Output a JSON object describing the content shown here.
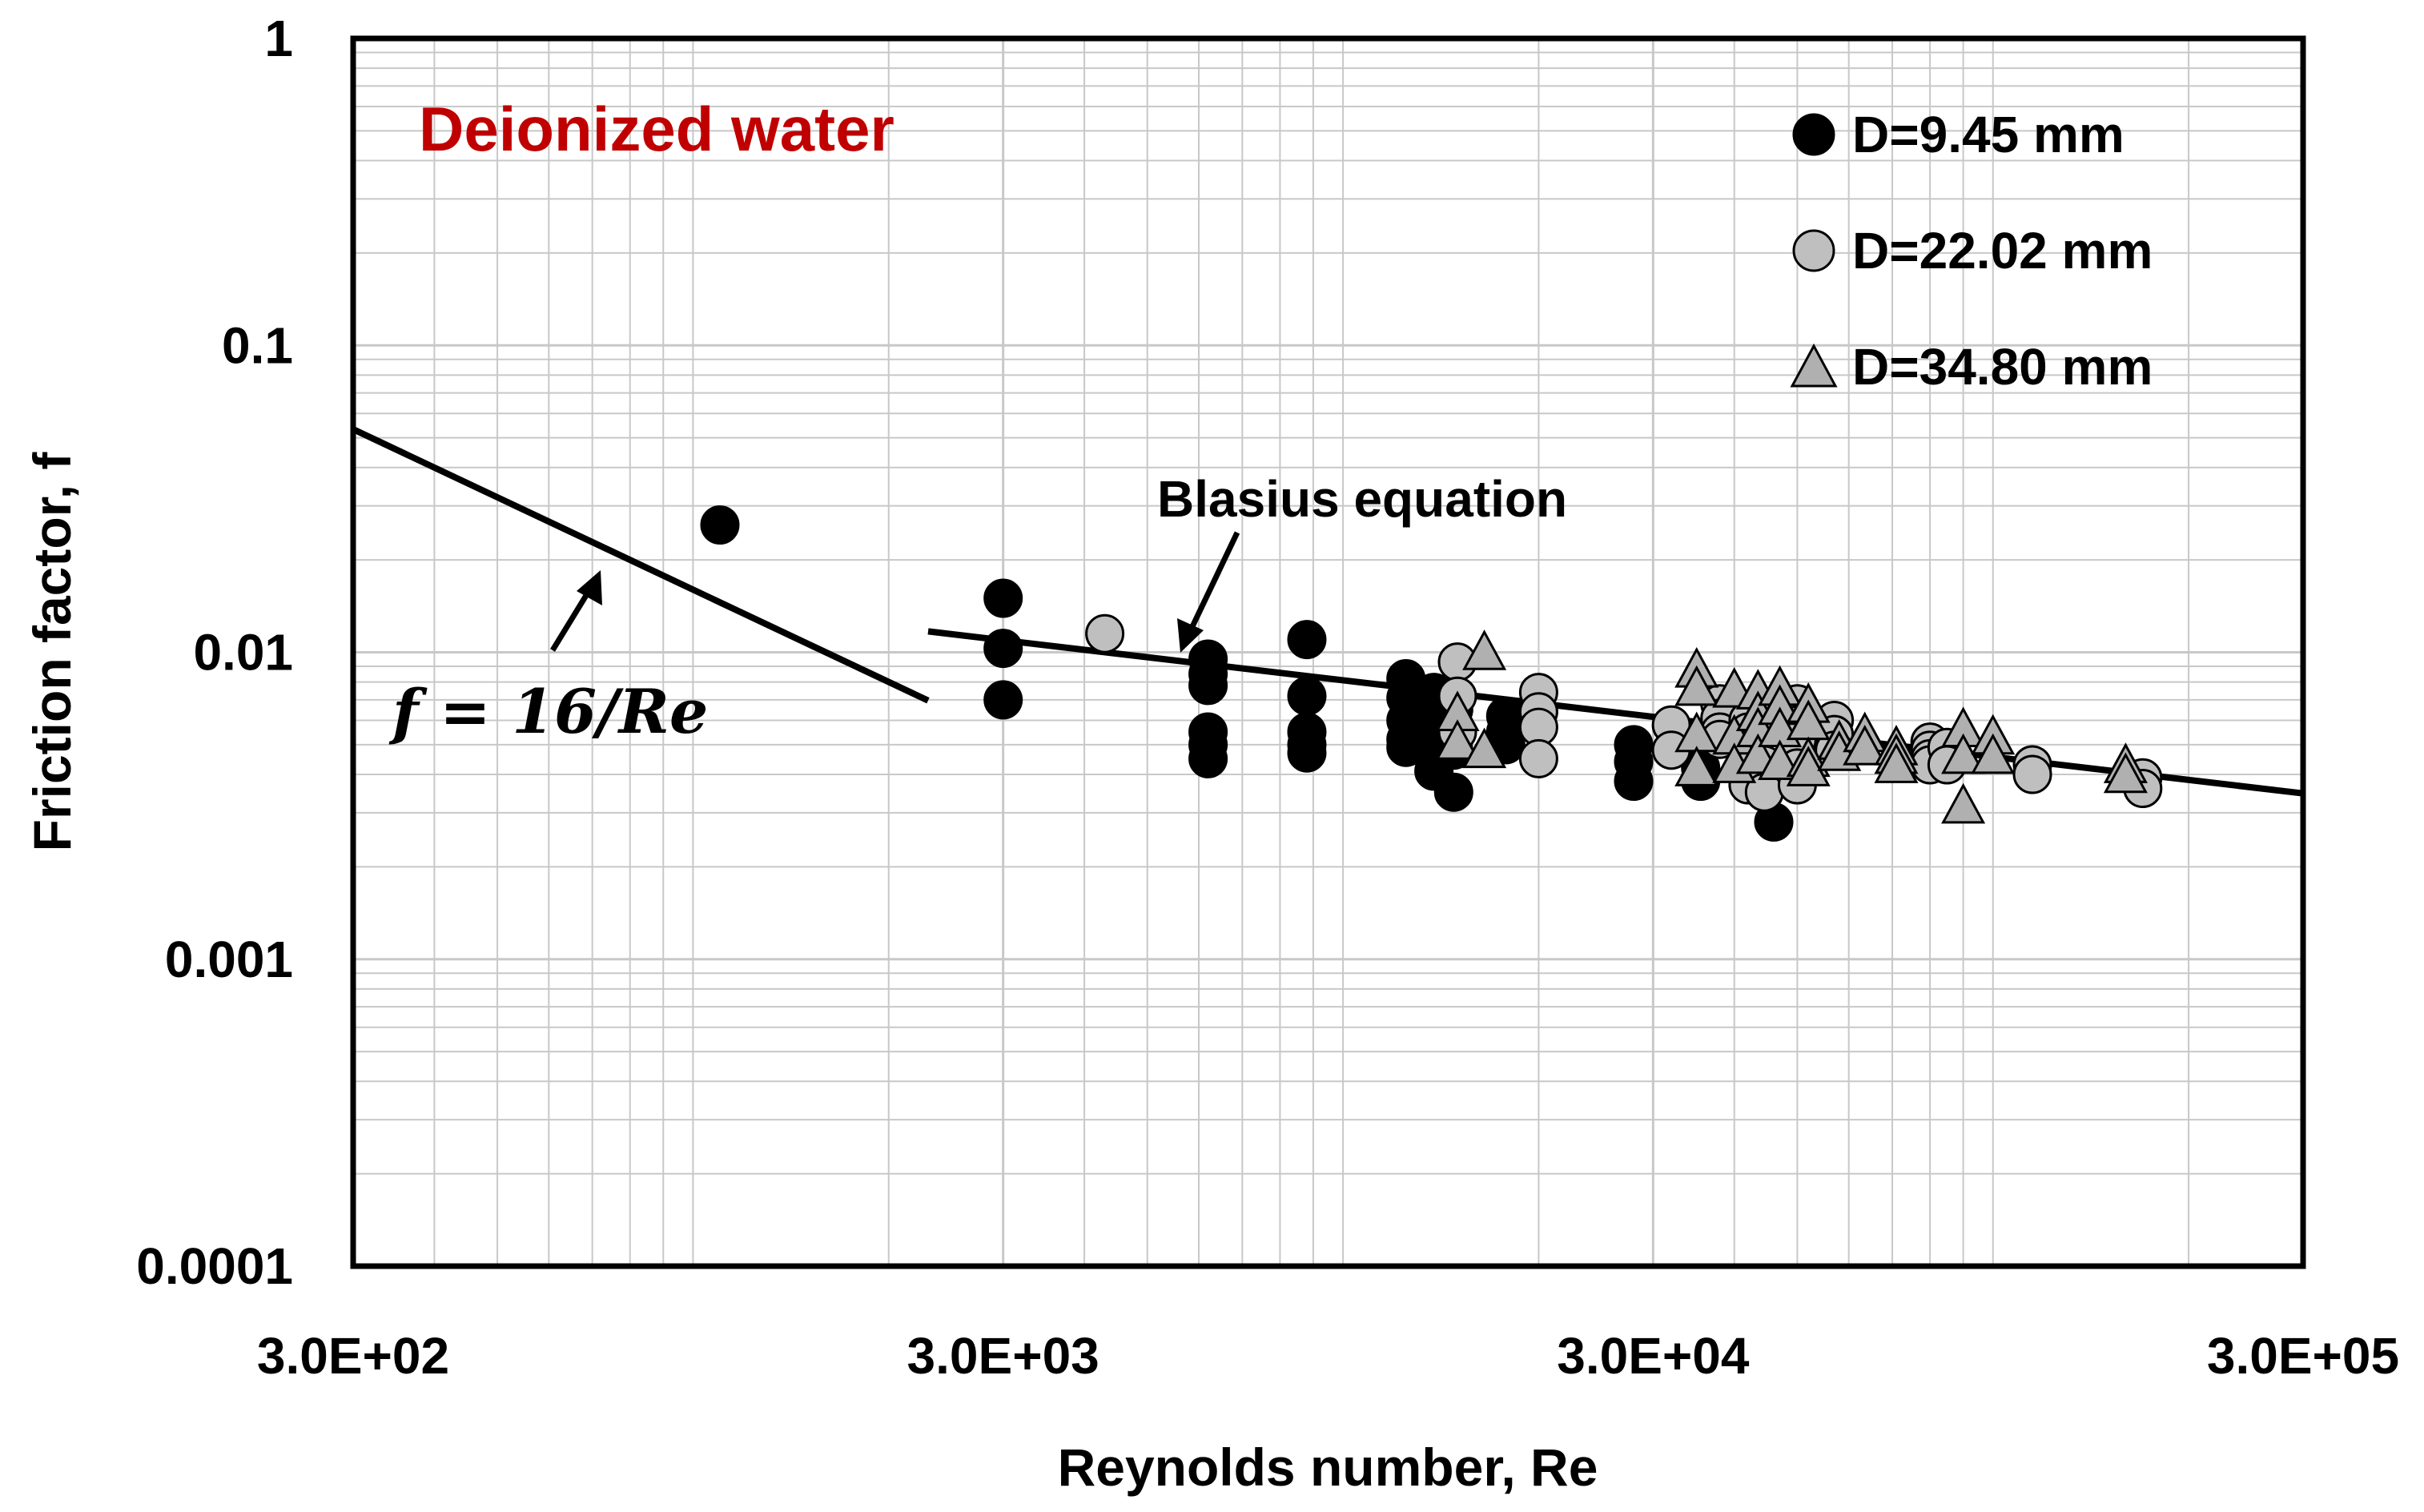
{
  "chart_data": {
    "type": "scatter",
    "title": "Deionized water",
    "xlabel": "Reynolds number, Re",
    "ylabel": "Friction factor, f",
    "x_scale": "log",
    "y_scale": "log",
    "xlim": [
      300,
      300000
    ],
    "ylim": [
      0.0001,
      1
    ],
    "x_tick_labels": [
      "3.0E+02",
      "3.0E+03",
      "3.0E+04",
      "3.0E+05"
    ],
    "x_tick_values": [
      300,
      3000,
      30000,
      300000
    ],
    "y_tick_labels": [
      "1",
      "0.1",
      "0.01",
      "0.001",
      "0.0001"
    ],
    "y_tick_values": [
      1,
      0.1,
      0.01,
      0.001,
      0.0001
    ],
    "grid": true,
    "legend_position": "top-right",
    "colors": {
      "title": "#c00000",
      "series_black": "#000000",
      "series_gray": "#bfbfbf",
      "series_triangle": "#b0b0b0",
      "grid": "#c8c8c8"
    },
    "series": [
      {
        "name": "D=9.45 mm",
        "marker": "circle",
        "fill": "#000000",
        "points": [
          [
            1100,
            0.026
          ],
          [
            3000,
            0.015
          ],
          [
            3000,
            0.0103
          ],
          [
            3000,
            0.007
          ],
          [
            6200,
            0.0095
          ],
          [
            6200,
            0.0085
          ],
          [
            6200,
            0.0078
          ],
          [
            6200,
            0.0055
          ],
          [
            6200,
            0.005
          ],
          [
            6200,
            0.0045
          ],
          [
            8800,
            0.011
          ],
          [
            8800,
            0.0072
          ],
          [
            8800,
            0.0055
          ],
          [
            8800,
            0.005
          ],
          [
            8800,
            0.0047
          ],
          [
            12500,
            0.0082
          ],
          [
            12500,
            0.0071
          ],
          [
            12500,
            0.006
          ],
          [
            12500,
            0.0052
          ],
          [
            12500,
            0.0049
          ],
          [
            13800,
            0.0074
          ],
          [
            13800,
            0.0063
          ],
          [
            13800,
            0.0057
          ],
          [
            13800,
            0.0052
          ],
          [
            13800,
            0.0045
          ],
          [
            13800,
            0.0041
          ],
          [
            14800,
            0.0065
          ],
          [
            14800,
            0.0056
          ],
          [
            14800,
            0.0048
          ],
          [
            14800,
            0.0035
          ],
          [
            17800,
            0.0062
          ],
          [
            17800,
            0.0055
          ],
          [
            17800,
            0.005
          ],
          [
            28000,
            0.005
          ],
          [
            28000,
            0.0044
          ],
          [
            28000,
            0.0038
          ],
          [
            35500,
            0.0042
          ],
          [
            35500,
            0.0038
          ],
          [
            46000,
            0.0028
          ]
        ]
      },
      {
        "name": "D=22.02 mm",
        "marker": "circle",
        "fill": "#bfbfbf",
        "points": [
          [
            4300,
            0.0115
          ],
          [
            15000,
            0.0093
          ],
          [
            15000,
            0.0072
          ],
          [
            15000,
            0.0055
          ],
          [
            20000,
            0.0074
          ],
          [
            20000,
            0.0064
          ],
          [
            20000,
            0.0057
          ],
          [
            20000,
            0.0045
          ],
          [
            32000,
            0.0058
          ],
          [
            32000,
            0.0048
          ],
          [
            38000,
            0.0068
          ],
          [
            38000,
            0.0061
          ],
          [
            38000,
            0.0055
          ],
          [
            38000,
            0.0052
          ],
          [
            42000,
            0.006
          ],
          [
            42000,
            0.0055
          ],
          [
            42000,
            0.0048
          ],
          [
            42000,
            0.0042
          ],
          [
            42000,
            0.0037
          ],
          [
            44500,
            0.0058
          ],
          [
            44500,
            0.0043
          ],
          [
            44500,
            0.0035
          ],
          [
            50000,
            0.0068
          ],
          [
            50000,
            0.0058
          ],
          [
            50000,
            0.0052
          ],
          [
            50000,
            0.0042
          ],
          [
            50000,
            0.0037
          ],
          [
            57000,
            0.006
          ],
          [
            57000,
            0.0054
          ],
          [
            57000,
            0.0048
          ],
          [
            80000,
            0.0051
          ],
          [
            80000,
            0.0048
          ],
          [
            80000,
            0.0045
          ],
          [
            80000,
            0.0043
          ],
          [
            85000,
            0.0049
          ],
          [
            85000,
            0.0043
          ],
          [
            115000,
            0.0043
          ],
          [
            115000,
            0.004
          ],
          [
            170000,
            0.0039
          ],
          [
            170000,
            0.0036
          ]
        ]
      },
      {
        "name": "D=34.80 mm",
        "marker": "triangle",
        "fill": "#b0b0b0",
        "points": [
          [
            15000,
            0.0062
          ],
          [
            15000,
            0.005
          ],
          [
            16500,
            0.0098
          ],
          [
            16500,
            0.0047
          ],
          [
            35000,
            0.0086
          ],
          [
            35000,
            0.0075
          ],
          [
            35000,
            0.0053
          ],
          [
            35000,
            0.0041
          ],
          [
            40000,
            0.0074
          ],
          [
            40000,
            0.0052
          ],
          [
            40000,
            0.0042
          ],
          [
            43500,
            0.0073
          ],
          [
            43500,
            0.0062
          ],
          [
            43500,
            0.0055
          ],
          [
            43500,
            0.0045
          ],
          [
            47000,
            0.0075
          ],
          [
            47000,
            0.0065
          ],
          [
            47000,
            0.0055
          ],
          [
            47000,
            0.0043
          ],
          [
            52000,
            0.0066
          ],
          [
            52000,
            0.0058
          ],
          [
            52000,
            0.0044
          ],
          [
            52000,
            0.0041
          ],
          [
            58000,
            0.005
          ],
          [
            58000,
            0.0046
          ],
          [
            63500,
            0.0053
          ],
          [
            63500,
            0.0048
          ],
          [
            71000,
            0.0048
          ],
          [
            71000,
            0.0045
          ],
          [
            71000,
            0.0042
          ],
          [
            90000,
            0.0055
          ],
          [
            90000,
            0.0045
          ],
          [
            90000,
            0.0031
          ],
          [
            100000,
            0.0052
          ],
          [
            100000,
            0.0045
          ],
          [
            160000,
            0.0042
          ],
          [
            160000,
            0.0039
          ]
        ]
      }
    ],
    "lines": [
      {
        "name": "f = 16/Re",
        "label": "f = 16/Re",
        "x": [
          300,
          2300
        ],
        "y": [
          0.0533,
          0.00696
        ]
      },
      {
        "name": "Blasius equation",
        "label": "Blasius equation",
        "x": [
          2300,
          300000
        ],
        "y": [
          0.0117,
          0.00347
        ]
      }
    ]
  }
}
